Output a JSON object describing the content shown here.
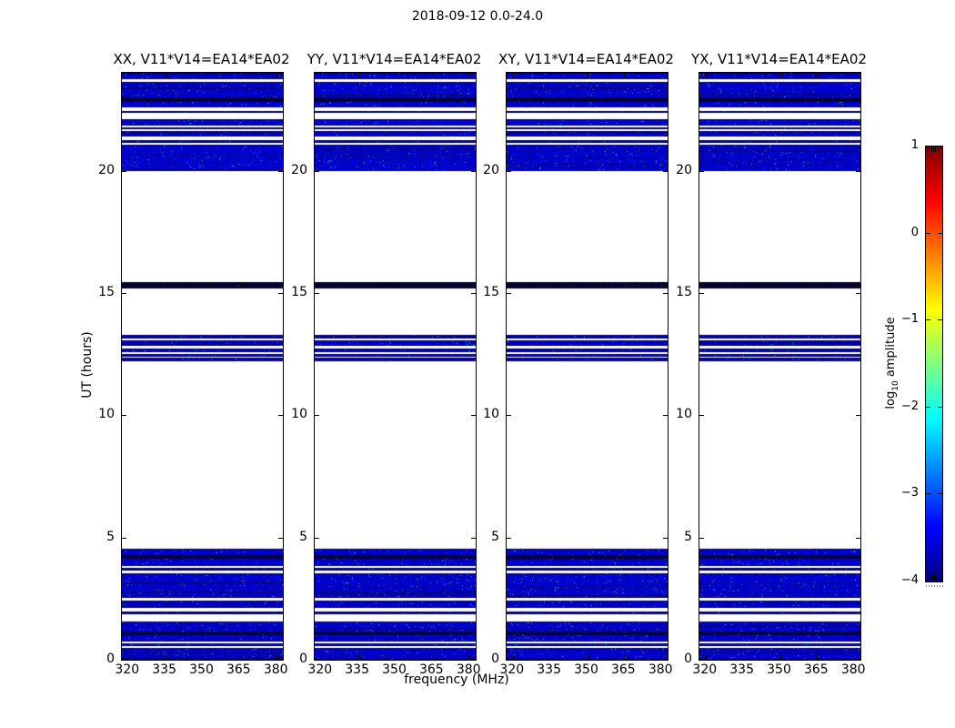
{
  "figure": {
    "title": "2018-09-12 0.0-24.0",
    "background": "#ffffff"
  },
  "chart_data": {
    "type": "heatmap",
    "title": "2018-09-12 0.0-24.0",
    "xlabel": "frequency (MHz)",
    "ylabel": "UT (hours)",
    "panels": [
      {
        "pol": "XX",
        "title": "XX, V11*V14=EA14*EA02"
      },
      {
        "pol": "YY",
        "title": "YY, V11*V14=EA14*EA02"
      },
      {
        "pol": "XY",
        "title": "XY, V11*V14=EA14*EA02"
      },
      {
        "pol": "YX",
        "title": "YX, V11*V14=EA14*EA02"
      }
    ],
    "x_range": [
      317.5,
      382.5
    ],
    "x_ticks": [
      320,
      335,
      350,
      365,
      380
    ],
    "y_range": [
      0,
      24
    ],
    "y_ticks": [
      0,
      5,
      10,
      15,
      20
    ],
    "grid": false,
    "colorbar": {
      "label_prefix": "log",
      "label_sub": "10",
      "label_suffix": " amplitude",
      "range": [
        -4,
        1
      ],
      "ticks": [
        "1",
        "0",
        "−1",
        "−2",
        "−3",
        "−4"
      ],
      "tick_values": [
        1,
        0,
        -1,
        -2,
        -3,
        -4
      ],
      "colormap": "jet",
      "stops_top_to_bottom": [
        "#7F0000",
        "#FF0000",
        "#FFFF00",
        "#00FFFF",
        "#0000FF",
        "#00007F"
      ]
    },
    "scans": [
      {
        "start": 0.0,
        "end": 0.49,
        "kind": "data"
      },
      {
        "start": 0.56,
        "end": 0.66,
        "kind": "data"
      },
      {
        "start": 0.74,
        "end": 1.03,
        "kind": "data"
      },
      {
        "start": 1.03,
        "end": 1.12,
        "kind": "dark"
      },
      {
        "start": 1.12,
        "end": 1.56,
        "kind": "data"
      },
      {
        "start": 1.86,
        "end": 1.98,
        "kind": "data"
      },
      {
        "start": 2.12,
        "end": 2.42,
        "kind": "data"
      },
      {
        "start": 2.53,
        "end": 3.54,
        "kind": "data"
      },
      {
        "start": 3.65,
        "end": 3.76,
        "kind": "data"
      },
      {
        "start": 3.84,
        "end": 4.18,
        "kind": "data"
      },
      {
        "start": 4.18,
        "end": 4.26,
        "kind": "dark"
      },
      {
        "start": 4.26,
        "end": 4.54,
        "kind": "data"
      },
      {
        "start": 12.21,
        "end": 12.36,
        "kind": "data"
      },
      {
        "start": 12.4,
        "end": 12.49,
        "kind": "data"
      },
      {
        "start": 12.56,
        "end": 12.71,
        "kind": "data"
      },
      {
        "start": 12.82,
        "end": 13.06,
        "kind": "data"
      },
      {
        "start": 13.14,
        "end": 13.28,
        "kind": "data"
      },
      {
        "start": 15.18,
        "end": 15.28,
        "kind": "dark"
      },
      {
        "start": 15.28,
        "end": 15.33,
        "kind": "data"
      },
      {
        "start": 15.33,
        "end": 15.44,
        "kind": "dark"
      },
      {
        "start": 20.0,
        "end": 21.05,
        "kind": "data"
      },
      {
        "start": 21.12,
        "end": 21.25,
        "kind": "data"
      },
      {
        "start": 21.38,
        "end": 21.62,
        "kind": "data"
      },
      {
        "start": 21.68,
        "end": 21.78,
        "kind": "data"
      },
      {
        "start": 21.85,
        "end": 22.1,
        "kind": "data"
      },
      {
        "start": 22.35,
        "end": 22.45,
        "kind": "data"
      },
      {
        "start": 22.6,
        "end": 22.85,
        "kind": "data"
      },
      {
        "start": 22.85,
        "end": 22.95,
        "kind": "dark"
      },
      {
        "start": 22.95,
        "end": 23.63,
        "kind": "data"
      },
      {
        "start": 23.75,
        "end": 24.0,
        "kind": "data"
      }
    ],
    "colors": {
      "data_base": "#0000E0",
      "speck_cyan": "#18B4F0",
      "speck_green": "#20C860",
      "dark_row": "#000020",
      "gap": "#FFFFFF",
      "axis": "#000000"
    }
  }
}
